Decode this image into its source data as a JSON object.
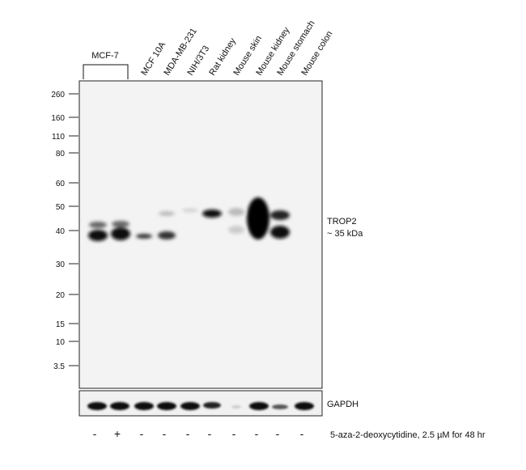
{
  "group_label": "MCF-7",
  "lanes": [
    "MCF 10A",
    "MDA-MB-231",
    "NIH/3T3",
    "Rat kidney",
    "Mouse skin",
    "Mouse kidney",
    "Mouse stomach",
    "Mouse colon"
  ],
  "markers": [
    "260",
    "160",
    "110",
    "80",
    "60",
    "50",
    "40",
    "30",
    "20",
    "15",
    "10",
    "3.5"
  ],
  "target_label": "TROP2",
  "target_size": "~ 35 kDa",
  "loading_label": "GAPDH",
  "treatment": [
    "-",
    "+",
    "-",
    "-",
    "-",
    "-",
    "-",
    "-",
    "-",
    "-"
  ],
  "treatment_label": "5-aza-2-deoxycytidine, 2.5 µM for 48 hr"
}
